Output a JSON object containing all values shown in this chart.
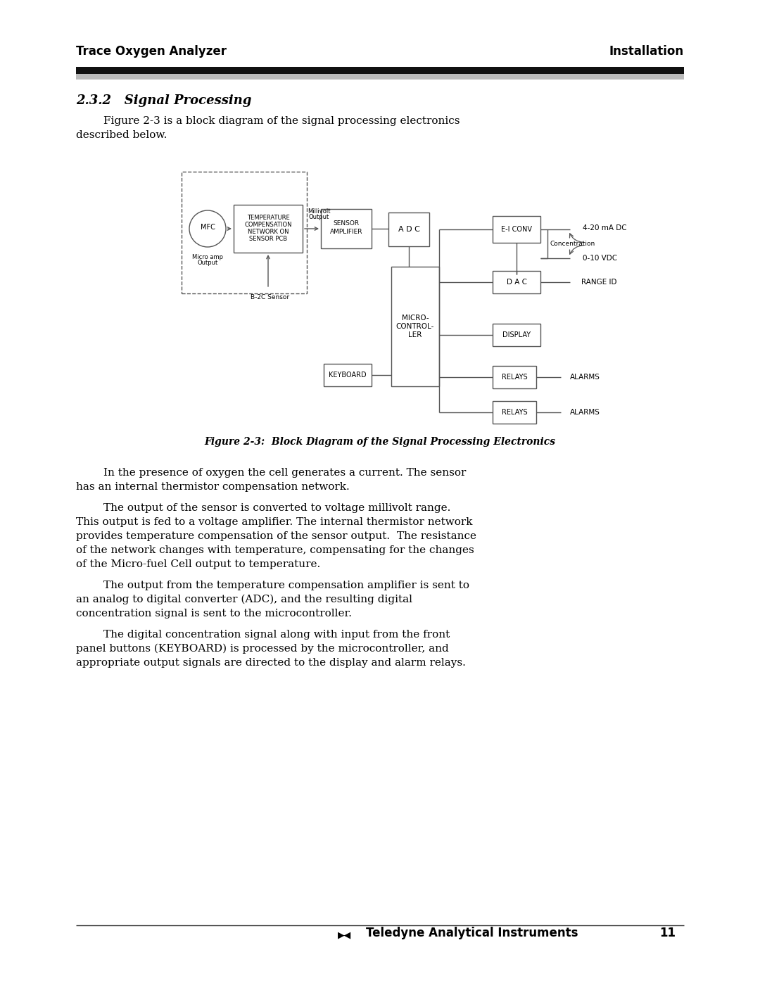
{
  "page_title_left": "Trace Oxygen Analyzer",
  "page_title_right": "Installation",
  "section_title": "2.3.2   Signal Processing",
  "intro_line1": "        Figure 2-3 is a block diagram of the signal processing electronics",
  "intro_line2": "described below.",
  "figure_caption": "Figure 2-3:  Block Diagram of the Signal Processing Electronics",
  "body_paragraphs": [
    [
      "        In the presence of oxygen the cell generates a current. The sensor",
      "has an internal thermistor compensation network."
    ],
    [
      "        The output of the sensor is converted to voltage millivolt range.",
      "This output is fed to a voltage amplifier. The internal thermistor network",
      "provides temperature compensation of the sensor output.  The resistance",
      "of the network changes with temperature, compensating for the changes",
      "of the Micro-fuel Cell output to temperature."
    ],
    [
      "        The output from the temperature compensation amplifier is sent to",
      "an analog to digital converter (ADC), and the resulting digital",
      "concentration signal is sent to the microcontroller."
    ],
    [
      "        The digital concentration signal along with input from the front",
      "panel buttons (KEYBOARD) is processed by the microcontroller, and",
      "appropriate output signals are directed to the display and alarm relays."
    ]
  ],
  "footer_text": "Teledyne Analytical Instruments",
  "footer_page": "11",
  "bg_color": "#ffffff",
  "header_bar_color": "#0a0a0a",
  "header_bar_shadow": "#aaaaaa"
}
